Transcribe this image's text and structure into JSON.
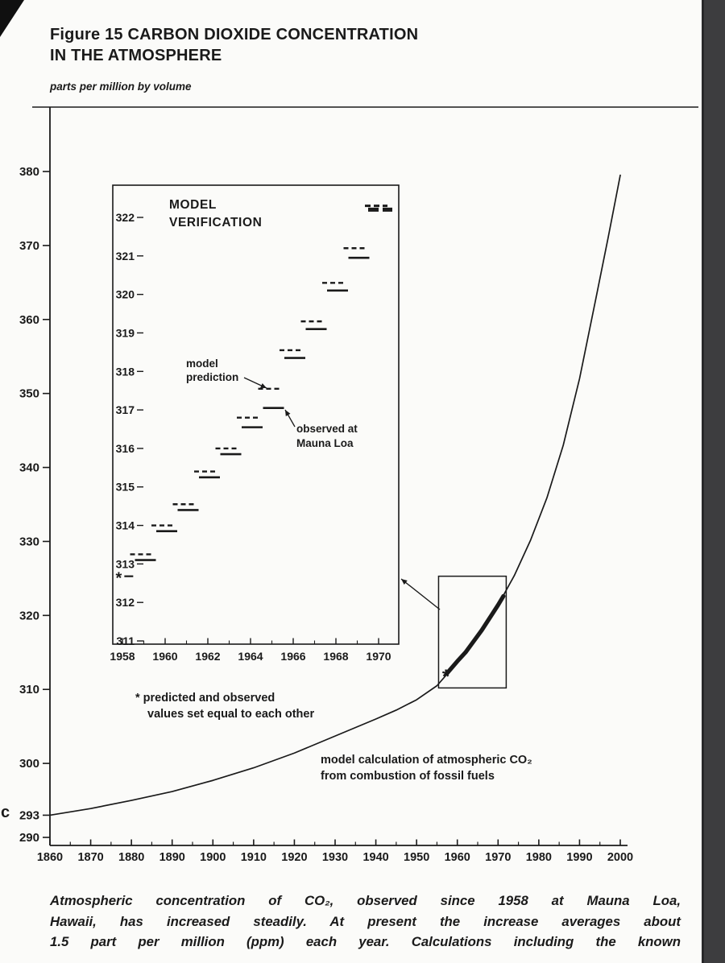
{
  "header": {
    "title_line1": "Figure 15 CARBON DIOXIDE CONCENTRATION",
    "title_line2": "IN THE ATMOSPHERE",
    "units_label": "parts per million by volume"
  },
  "page_artifacts": {
    "left_margin_mark": "c"
  },
  "caption": {
    "lines": [
      "Atmospheric concentration of CO₂, observed since 1958 at Mauna Loa,",
      "Hawaii, has increased steadily. At present the increase averages about",
      "1.5 part per million (ppm) each year. Calculations including the known"
    ]
  },
  "chart_data": {
    "type": "line",
    "title": "Figure 15 CARBON DIOXIDE CONCENTRATION IN THE ATMOSPHERE",
    "ylabel": "parts per million by volume",
    "ink_color": "#1a1a1a",
    "main": {
      "xlim": [
        1860,
        2000
      ],
      "ylim": [
        290,
        384
      ],
      "x_ticks": [
        1860,
        1870,
        1880,
        1890,
        1900,
        1910,
        1920,
        1930,
        1940,
        1950,
        1960,
        1970,
        1980,
        1990,
        2000
      ],
      "y_ticks": [
        290,
        293,
        300,
        310,
        320,
        330,
        340,
        350,
        360,
        370,
        380
      ],
      "model_curve": [
        [
          1860,
          293.0
        ],
        [
          1870,
          293.9
        ],
        [
          1880,
          295.0
        ],
        [
          1890,
          296.2
        ],
        [
          1900,
          297.7
        ],
        [
          1910,
          299.4
        ],
        [
          1920,
          301.4
        ],
        [
          1930,
          303.7
        ],
        [
          1940,
          306.0
        ],
        [
          1945,
          307.2
        ],
        [
          1950,
          308.6
        ],
        [
          1955,
          310.5
        ],
        [
          1958,
          312.4
        ],
        [
          1962,
          315.0
        ],
        [
          1966,
          318.0
        ],
        [
          1970,
          321.4
        ],
        [
          1974,
          325.4
        ],
        [
          1978,
          330.2
        ],
        [
          1982,
          335.9
        ],
        [
          1986,
          343.0
        ],
        [
          1990,
          352.0
        ],
        [
          1994,
          362.8
        ],
        [
          1997,
          371.0
        ],
        [
          2000,
          379.5
        ]
      ],
      "observed_segment": [
        [
          1957.5,
          312.2
        ],
        [
          1960,
          313.8
        ],
        [
          1962,
          315.0
        ],
        [
          1964,
          316.5
        ],
        [
          1966,
          318.0
        ],
        [
          1968,
          319.7
        ],
        [
          1970,
          321.4
        ],
        [
          1971.3,
          322.6
        ]
      ],
      "zoom_box": {
        "year_min": 1955.4,
        "year_max": 1972.0,
        "ppm_min": 310.2,
        "ppm_max": 325.3
      },
      "asterisk": [
        1957.2,
        312.1
      ],
      "asterisk_marker": "*",
      "annotation_line1": "model calculation of atmospheric CO₂",
      "annotation_line2": "from combustion of fossil fuels"
    },
    "inset": {
      "title_line1": "MODEL",
      "title_line2": "VERIFICATION",
      "xlim": [
        1957.5,
        1971.6
      ],
      "ylim": [
        310.9,
        322.8
      ],
      "x_ticks": [
        1958,
        1960,
        1962,
        1964,
        1966,
        1968,
        1970
      ],
      "y_ticks": [
        311,
        312,
        313,
        314,
        315,
        316,
        317,
        318,
        319,
        320,
        321,
        322
      ],
      "years": [
        1959,
        1960,
        1961,
        1962,
        1963,
        1964,
        1965,
        1966,
        1967,
        1968,
        1969,
        1970
      ],
      "series": [
        {
          "name": "model prediction",
          "style": "dashed",
          "values": [
            313.25,
            314.0,
            314.55,
            315.4,
            316.0,
            316.8,
            317.55,
            318.55,
            319.3,
            320.3,
            321.2,
            322.3
          ]
        },
        {
          "name": "observed at Mauna Loa",
          "style": "solid",
          "values": [
            313.1,
            313.85,
            314.4,
            315.25,
            315.85,
            316.55,
            317.05,
            318.35,
            319.1,
            320.1,
            320.95,
            322.2
          ]
        }
      ],
      "start_point": {
        "year": 1957.9,
        "value": 312.68,
        "marker": "*"
      },
      "label_model_line1": "model",
      "label_model_line2": "prediction",
      "label_observed_line1": "observed at",
      "label_observed_line2": "Mauna Loa",
      "footnote_line1": "* predicted and observed",
      "footnote_line2": "values set equal to each other"
    }
  }
}
